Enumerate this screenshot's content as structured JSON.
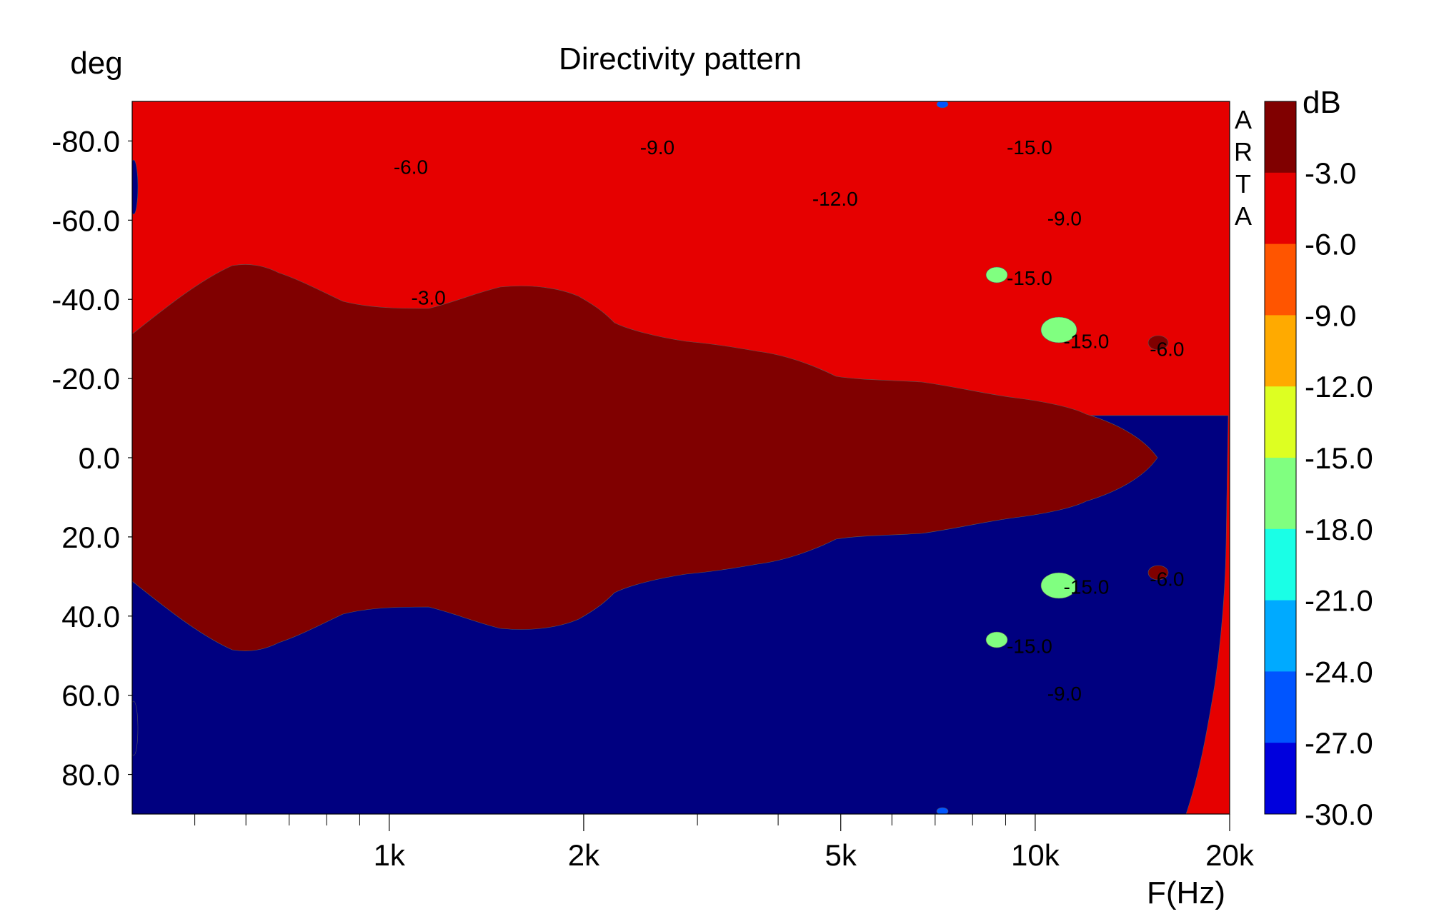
{
  "chart_data": {
    "type": "heatmap",
    "title": "Directivity pattern",
    "ylabel": "deg",
    "xlabel": "F(Hz)",
    "watermark": "ARTA",
    "x_scale": "log",
    "xlim": [
      400,
      20000
    ],
    "ylim": [
      -90,
      90
    ],
    "x_ticks": [
      {
        "value": 1000,
        "label": "1k"
      },
      {
        "value": 2000,
        "label": "2k"
      },
      {
        "value": 5000,
        "label": "5k"
      },
      {
        "value": 10000,
        "label": "10k"
      },
      {
        "value": 20000,
        "label": "20k"
      }
    ],
    "x_minor_ticks": [
      500,
      600,
      700,
      800,
      900,
      3000,
      4000,
      6000,
      7000,
      8000,
      9000
    ],
    "y_ticks": [
      {
        "value": -80,
        "label": "-80.0"
      },
      {
        "value": -60,
        "label": "-60.0"
      },
      {
        "value": -40,
        "label": "-40.0"
      },
      {
        "value": -20,
        "label": "-20.0"
      },
      {
        "value": 0,
        "label": "0.0"
      },
      {
        "value": 20,
        "label": "20.0"
      },
      {
        "value": 40,
        "label": "40.0"
      },
      {
        "value": 60,
        "label": "60.0"
      },
      {
        "value": 80,
        "label": "80.0"
      }
    ],
    "colorbar": {
      "unit": "dB",
      "levels": [
        {
          "label": "-3.0",
          "color": "#800000"
        },
        {
          "label": "-6.0",
          "color": "#e60000"
        },
        {
          "label": "-9.0",
          "color": "#ff5500"
        },
        {
          "label": "-12.0",
          "color": "#ffaa00"
        },
        {
          "label": "-15.0",
          "color": "#ddff22"
        },
        {
          "label": "-18.0",
          "color": "#80ff80"
        },
        {
          "label": "-21.0",
          "color": "#1affe6"
        },
        {
          "label": "-24.0",
          "color": "#00aaff"
        },
        {
          "label": "-27.0",
          "color": "#0055ff"
        },
        {
          "label": "-30.0",
          "color": "#0000dd"
        }
      ],
      "bottom_color": "#000080"
    },
    "contour_labels": [
      {
        "label": "-6.0",
        "f": 1080,
        "deg": -73
      },
      {
        "label": "-9.0",
        "f": 2600,
        "deg": -78
      },
      {
        "label": "-12.0",
        "f": 4900,
        "deg": -65
      },
      {
        "label": "-15.0",
        "f": 9800,
        "deg": -78
      },
      {
        "label": "-9.0",
        "f": 11100,
        "deg": -60
      },
      {
        "label": "-3.0",
        "f": 1150,
        "deg": -40
      },
      {
        "label": "-15.0",
        "f": 9800,
        "deg": -45
      },
      {
        "label": "-15.0",
        "f": 12000,
        "deg": -29
      },
      {
        "label": "-6.0",
        "f": 16000,
        "deg": -27
      },
      {
        "label": "-15.0",
        "f": 12000,
        "deg": 33
      },
      {
        "label": "-6.0",
        "f": 16000,
        "deg": 31
      },
      {
        "label": "-15.0",
        "f": 9800,
        "deg": 48
      },
      {
        "label": "-9.0",
        "f": 11100,
        "deg": 60
      }
    ]
  }
}
